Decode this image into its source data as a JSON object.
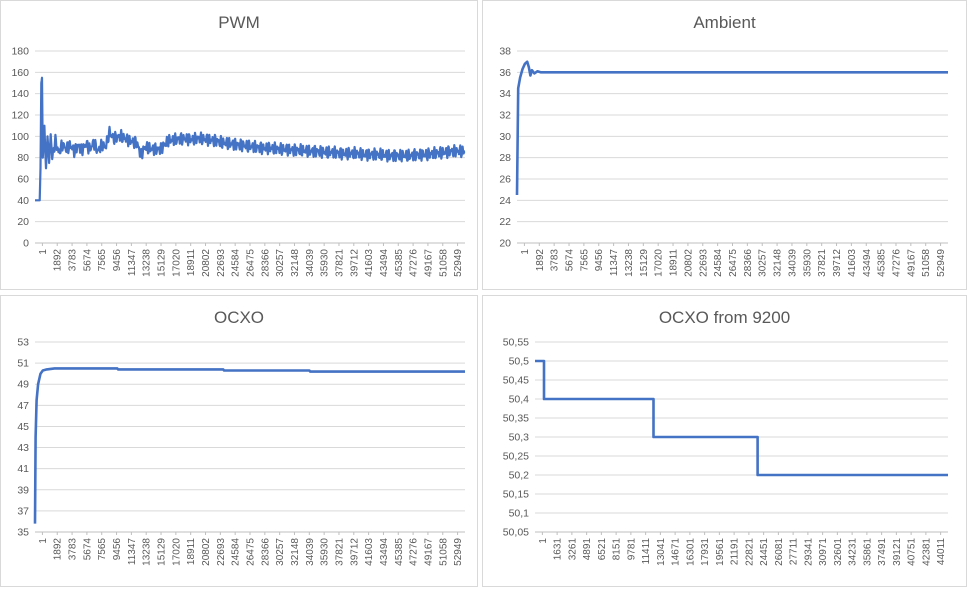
{
  "chart_data": [
    {
      "type": "line",
      "title": "PWM",
      "xlabel": "",
      "ylabel": "",
      "ylim": [
        0,
        180
      ],
      "yticks": [
        "0",
        "20",
        "40",
        "60",
        "80",
        "100",
        "120",
        "140",
        "160",
        "180"
      ],
      "x_ticks": [
        "1",
        "1892",
        "3783",
        "5674",
        "7565",
        "9456",
        "11347",
        "13238",
        "15129",
        "17020",
        "18911",
        "20802",
        "22693",
        "24584",
        "26475",
        "28366",
        "30257",
        "32148",
        "34039",
        "35930",
        "37821",
        "39712",
        "41603",
        "43494",
        "45385",
        "47276",
        "49167",
        "51058",
        "52949"
      ],
      "xlim": [
        1,
        54840
      ],
      "grid": true,
      "line_color": "#4472c4",
      "series": [
        {
          "points": [
            [
              1,
              40
            ],
            [
              600,
              40
            ],
            [
              700,
              70
            ],
            [
              800,
              150
            ],
            [
              900,
              155
            ],
            [
              1000,
              80
            ],
            [
              1200,
              110
            ],
            [
              1400,
              70
            ],
            [
              1600,
              100
            ],
            [
              1800,
              75
            ],
            [
              2000,
              102
            ],
            [
              2200,
              80
            ],
            [
              2600,
              96
            ],
            [
              3000,
              85
            ],
            [
              3500,
              92
            ],
            [
              4000,
              88
            ],
            [
              4500,
              92
            ],
            [
              5000,
              86
            ],
            [
              5500,
              91
            ],
            [
              6000,
              87
            ],
            [
              6500,
              93
            ],
            [
              7000,
              88
            ],
            [
              7500,
              94
            ],
            [
              8000,
              86
            ],
            [
              8500,
              92
            ],
            [
              9000,
              90
            ],
            [
              9500,
              104
            ],
            [
              10000,
              98
            ],
            [
              11000,
              100
            ],
            [
              12000,
              96
            ],
            [
              13000,
              94
            ],
            [
              13500,
              82
            ],
            [
              14000,
              90
            ],
            [
              15000,
              88
            ],
            [
              16000,
              88
            ],
            [
              17000,
              96
            ],
            [
              18000,
              97
            ],
            [
              19000,
              98
            ],
            [
              20000,
              97
            ],
            [
              21000,
              98
            ],
            [
              22000,
              97
            ],
            [
              23000,
              96
            ],
            [
              24000,
              94
            ],
            [
              25000,
              93
            ],
            [
              26000,
              92
            ],
            [
              27000,
              91
            ],
            [
              28000,
              90
            ],
            [
              29000,
              89
            ],
            [
              30000,
              89
            ],
            [
              31000,
              88
            ],
            [
              32000,
              88
            ],
            [
              33000,
              87
            ],
            [
              34000,
              87
            ],
            [
              35000,
              86
            ],
            [
              36000,
              86
            ],
            [
              37000,
              85
            ],
            [
              38000,
              85
            ],
            [
              39000,
              84
            ],
            [
              40000,
              84
            ],
            [
              41000,
              84
            ],
            [
              42000,
              83
            ],
            [
              43000,
              83
            ],
            [
              44000,
              83
            ],
            [
              45000,
              82
            ],
            [
              46000,
              82
            ],
            [
              47000,
              82
            ],
            [
              48000,
              82
            ],
            [
              49000,
              83
            ],
            [
              50000,
              83
            ],
            [
              51000,
              84
            ],
            [
              52000,
              85
            ],
            [
              53000,
              86
            ],
            [
              54000,
              86
            ],
            [
              54840,
              86
            ]
          ]
        }
      ],
      "noise_amplitude": 6
    },
    {
      "type": "line",
      "title": "Ambient",
      "xlabel": "",
      "ylabel": "",
      "ylim": [
        20,
        38
      ],
      "yticks": [
        "20",
        "22",
        "24",
        "26",
        "28",
        "30",
        "32",
        "34",
        "36",
        "38"
      ],
      "x_ticks": [
        "1",
        "1892",
        "3783",
        "5674",
        "7565",
        "9456",
        "11347",
        "13238",
        "15129",
        "17020",
        "18911",
        "20802",
        "22693",
        "24584",
        "26475",
        "28366",
        "30257",
        "32148",
        "34039",
        "35930",
        "37821",
        "39712",
        "41603",
        "43494",
        "45385",
        "47276",
        "49167",
        "51058",
        "52949"
      ],
      "xlim": [
        1,
        54840
      ],
      "grid": true,
      "line_color": "#4472c4",
      "series": [
        {
          "points": [
            [
              1,
              24.5
            ],
            [
              150,
              34.5
            ],
            [
              400,
              35.5
            ],
            [
              700,
              36.3
            ],
            [
              1000,
              36.8
            ],
            [
              1300,
              37
            ],
            [
              1500,
              36.5
            ],
            [
              1700,
              35.7
            ],
            [
              1900,
              36.2
            ],
            [
              2200,
              35.9
            ],
            [
              2600,
              36.1
            ],
            [
              3000,
              36
            ],
            [
              54840,
              36
            ]
          ]
        }
      ]
    },
    {
      "type": "line",
      "title": "OCXO",
      "xlabel": "",
      "ylabel": "",
      "ylim": [
        35,
        53
      ],
      "yticks": [
        "35",
        "37",
        "39",
        "41",
        "43",
        "45",
        "47",
        "49",
        "51",
        "53"
      ],
      "x_ticks": [
        "1",
        "1892",
        "3783",
        "5674",
        "7565",
        "9456",
        "11347",
        "13238",
        "15129",
        "17020",
        "18911",
        "20802",
        "22693",
        "24584",
        "26475",
        "28366",
        "30257",
        "32148",
        "34039",
        "35930",
        "37821",
        "39712",
        "41603",
        "43494",
        "45385",
        "47276",
        "49167",
        "51058",
        "52949"
      ],
      "xlim": [
        1,
        54840
      ],
      "grid": true,
      "line_color": "#4472c4",
      "series": [
        {
          "points": [
            [
              1,
              35.8
            ],
            [
              80,
              44
            ],
            [
              200,
              47.5
            ],
            [
              400,
              49
            ],
            [
              700,
              50
            ],
            [
              1000,
              50.3
            ],
            [
              1500,
              50.4
            ],
            [
              2500,
              50.5
            ],
            [
              10500,
              50.5
            ],
            [
              10600,
              50.4
            ],
            [
              24000,
              50.4
            ],
            [
              24100,
              50.3
            ],
            [
              35000,
              50.3
            ],
            [
              35100,
              50.2
            ],
            [
              54840,
              50.2
            ]
          ]
        }
      ]
    },
    {
      "type": "line",
      "title": "OCXO from 9200",
      "xlabel": "",
      "ylabel": "",
      "ylim": [
        50.05,
        50.55
      ],
      "yticks": [
        "50,05",
        "50,1",
        "50,15",
        "50,2",
        "50,25",
        "50,3",
        "50,35",
        "50,4",
        "50,45",
        "50,5",
        "50,55"
      ],
      "x_ticks": [
        "1",
        "1631",
        "3261",
        "4891",
        "6521",
        "8151",
        "9781",
        "11411",
        "13041",
        "14671",
        "16301",
        "17931",
        "19561",
        "21191",
        "22821",
        "24451",
        "26081",
        "27711",
        "29341",
        "30971",
        "32601",
        "34231",
        "35861",
        "37491",
        "39121",
        "40751",
        "42381",
        "44011"
      ],
      "xlim": [
        1,
        45640
      ],
      "grid": true,
      "line_color": "#4472c4",
      "series": [
        {
          "points": [
            [
              1,
              50.5
            ],
            [
              1000,
              50.5
            ],
            [
              1000,
              50.4
            ],
            [
              13100,
              50.4
            ],
            [
              13100,
              50.3
            ],
            [
              24600,
              50.3
            ],
            [
              24600,
              50.2
            ],
            [
              45640,
              50.2
            ]
          ]
        }
      ]
    }
  ]
}
